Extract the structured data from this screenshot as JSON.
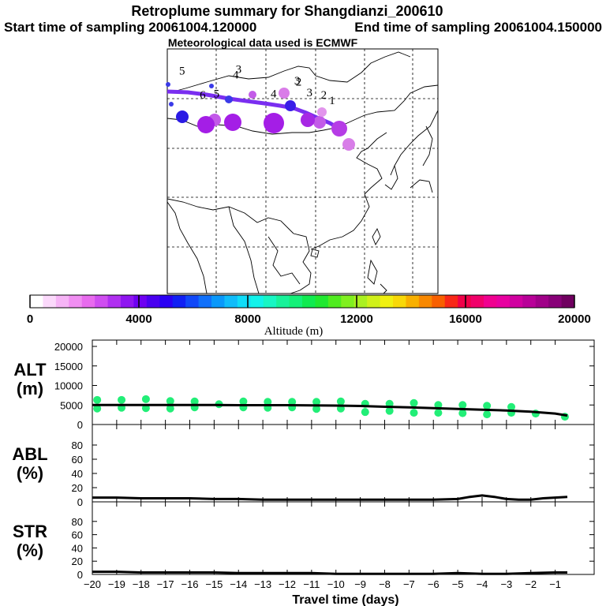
{
  "header": {
    "title": "Retroplume summary for Shangdianzi_200610",
    "start_label": "Start time of sampling 20061004.120000",
    "end_label": "End time of sampling 20061004.150000",
    "met_label": "Meteorological data used is ECMWF"
  },
  "colorbar": {
    "xlabel": "Altitude (m)",
    "tick_labels": [
      "0",
      "4000",
      "8000",
      "12000",
      "16000",
      "20000"
    ],
    "colors": [
      "#ffffff",
      "#fbd9fb",
      "#f6b4f6",
      "#f08ef2",
      "#e86bee",
      "#cf4ef0",
      "#b030f0",
      "#8f15f0",
      "#6e00f2",
      "#4a00f0",
      "#2a00f4",
      "#1020f4",
      "#1048f8",
      "#1070fa",
      "#0a98fa",
      "#10bcfa",
      "#10dcf8",
      "#12f2ea",
      "#18f6c4",
      "#18f29a",
      "#14f078",
      "#10ea50",
      "#20e830",
      "#50ec20",
      "#80f020",
      "#aaf020",
      "#d0f01a",
      "#f0f010",
      "#f8d808",
      "#f8b000",
      "#f88800",
      "#f86000",
      "#f82818",
      "#f00048",
      "#f0006a",
      "#f00090",
      "#e800a0",
      "#d000a0",
      "#b80098",
      "#a00088",
      "#880078",
      "#700060"
    ]
  },
  "map": {
    "labels": [
      {
        "text": "1",
        "lon": 116.5,
        "lat": 40.6
      },
      {
        "text": "2",
        "lon": 114.8,
        "lat": 41.6
      },
      {
        "text": "3",
        "lon": 111.9,
        "lat": 42.0
      },
      {
        "text": "4",
        "lon": 104.6,
        "lat": 41.8
      },
      {
        "text": "5",
        "lon": 93.0,
        "lat": 41.8
      },
      {
        "text": "6",
        "lon": 90.2,
        "lat": 41.6
      },
      {
        "text": "5",
        "lon": 86.0,
        "lat": 46.0
      },
      {
        "text": "4",
        "lon": 96.9,
        "lat": 45.3
      },
      {
        "text": "3",
        "lon": 109.4,
        "lat": 44.2
      },
      {
        "text": "2",
        "lon": 109.7,
        "lat": 44.0
      },
      {
        "text": "3",
        "lon": 97.5,
        "lat": 46.3
      }
    ]
  },
  "chart_data": [
    {
      "type": "line",
      "title": "Retroplume summary for Shangdianzi_200610",
      "panel_label": "ALT\n(m)",
      "ylabel": "ALT (m)",
      "xlabel": "Travel time (days)",
      "xlim": [
        -20,
        0
      ],
      "ylim": [
        0,
        20000
      ],
      "y_ticks": [
        0,
        5000,
        10000,
        15000,
        20000
      ],
      "x": [
        -20,
        -19,
        -18,
        -17,
        -16,
        -15,
        -14,
        -13,
        -12,
        -11,
        -10,
        -9,
        -8,
        -7,
        -6,
        -5,
        -4,
        -3,
        -2,
        -1,
        -0.5
      ],
      "values": [
        5000,
        5000,
        5000,
        5000,
        5000,
        5000,
        4950,
        4950,
        4950,
        4900,
        4850,
        4750,
        4550,
        4400,
        4200,
        4000,
        3800,
        3600,
        3300,
        2800,
        2300
      ],
      "scatter": {
        "x": [
          -19.8,
          -19.8,
          -18.8,
          -18.8,
          -17.8,
          -17.8,
          -16.8,
          -16.8,
          -15.8,
          -15.8,
          -14.8,
          -13.8,
          -13.8,
          -12.8,
          -12.8,
          -11.8,
          -11.8,
          -10.8,
          -10.8,
          -9.8,
          -9.8,
          -8.8,
          -8.8,
          -7.8,
          -7.8,
          -6.8,
          -6.8,
          -5.8,
          -5.8,
          -4.8,
          -4.8,
          -3.8,
          -3.8,
          -2.8,
          -2.8,
          -1.8,
          -0.6
        ],
        "values": [
          4100,
          6300,
          4300,
          6300,
          4200,
          6500,
          4100,
          6000,
          4400,
          5900,
          5200,
          4400,
          5900,
          4300,
          5800,
          4400,
          5800,
          4000,
          5800,
          4100,
          5900,
          3200,
          5300,
          3500,
          5300,
          3000,
          5500,
          3000,
          5000,
          2900,
          5000,
          2600,
          4800,
          3000,
          4500,
          2800,
          2000
        ]
      }
    },
    {
      "type": "line",
      "panel_label": "ABL\n(%)",
      "ylabel": "ABL (%)",
      "xlim": [
        -20,
        0
      ],
      "ylim": [
        0,
        100
      ],
      "y_ticks": [
        0,
        20,
        40,
        60,
        80
      ],
      "x": [
        -20,
        -19,
        -18,
        -17,
        -16,
        -15,
        -14,
        -13,
        -12,
        -11,
        -10,
        -9,
        -8,
        -7,
        -6,
        -5,
        -4.5,
        -4,
        -3.5,
        -3,
        -2.5,
        -2,
        -1.5,
        -1,
        -0.5
      ],
      "values": [
        6,
        6,
        5,
        5,
        5,
        4,
        4,
        3,
        3,
        3,
        3,
        3,
        3,
        3,
        3,
        4,
        7,
        9,
        7,
        4,
        3,
        3,
        5,
        6,
        7
      ]
    },
    {
      "type": "line",
      "panel_label": "STR\n(%)",
      "ylabel": "STR (%)",
      "xlim": [
        -20,
        0
      ],
      "ylim": [
        0,
        100
      ],
      "y_ticks": [
        0,
        20,
        40,
        60,
        80
      ],
      "x": [
        -20,
        -19,
        -18,
        -17,
        -16,
        -15,
        -14,
        -13,
        -12,
        -11,
        -10,
        -9,
        -8,
        -7,
        -6,
        -5,
        -4,
        -3,
        -2,
        -1,
        -0.5
      ],
      "values": [
        4,
        4,
        3,
        3,
        3,
        3,
        2,
        2,
        2,
        2,
        1,
        1,
        1,
        1,
        1,
        2,
        1,
        1,
        2,
        3,
        3
      ],
      "x_tick_labels": [
        "−20",
        "−19",
        "−18",
        "−17",
        "−16",
        "−15",
        "−14",
        "−13",
        "−12",
        "−11",
        "−10",
        "−9",
        "−8",
        "−7",
        "−6",
        "−5",
        "−4",
        "−3",
        "−2",
        "−1"
      ]
    }
  ]
}
